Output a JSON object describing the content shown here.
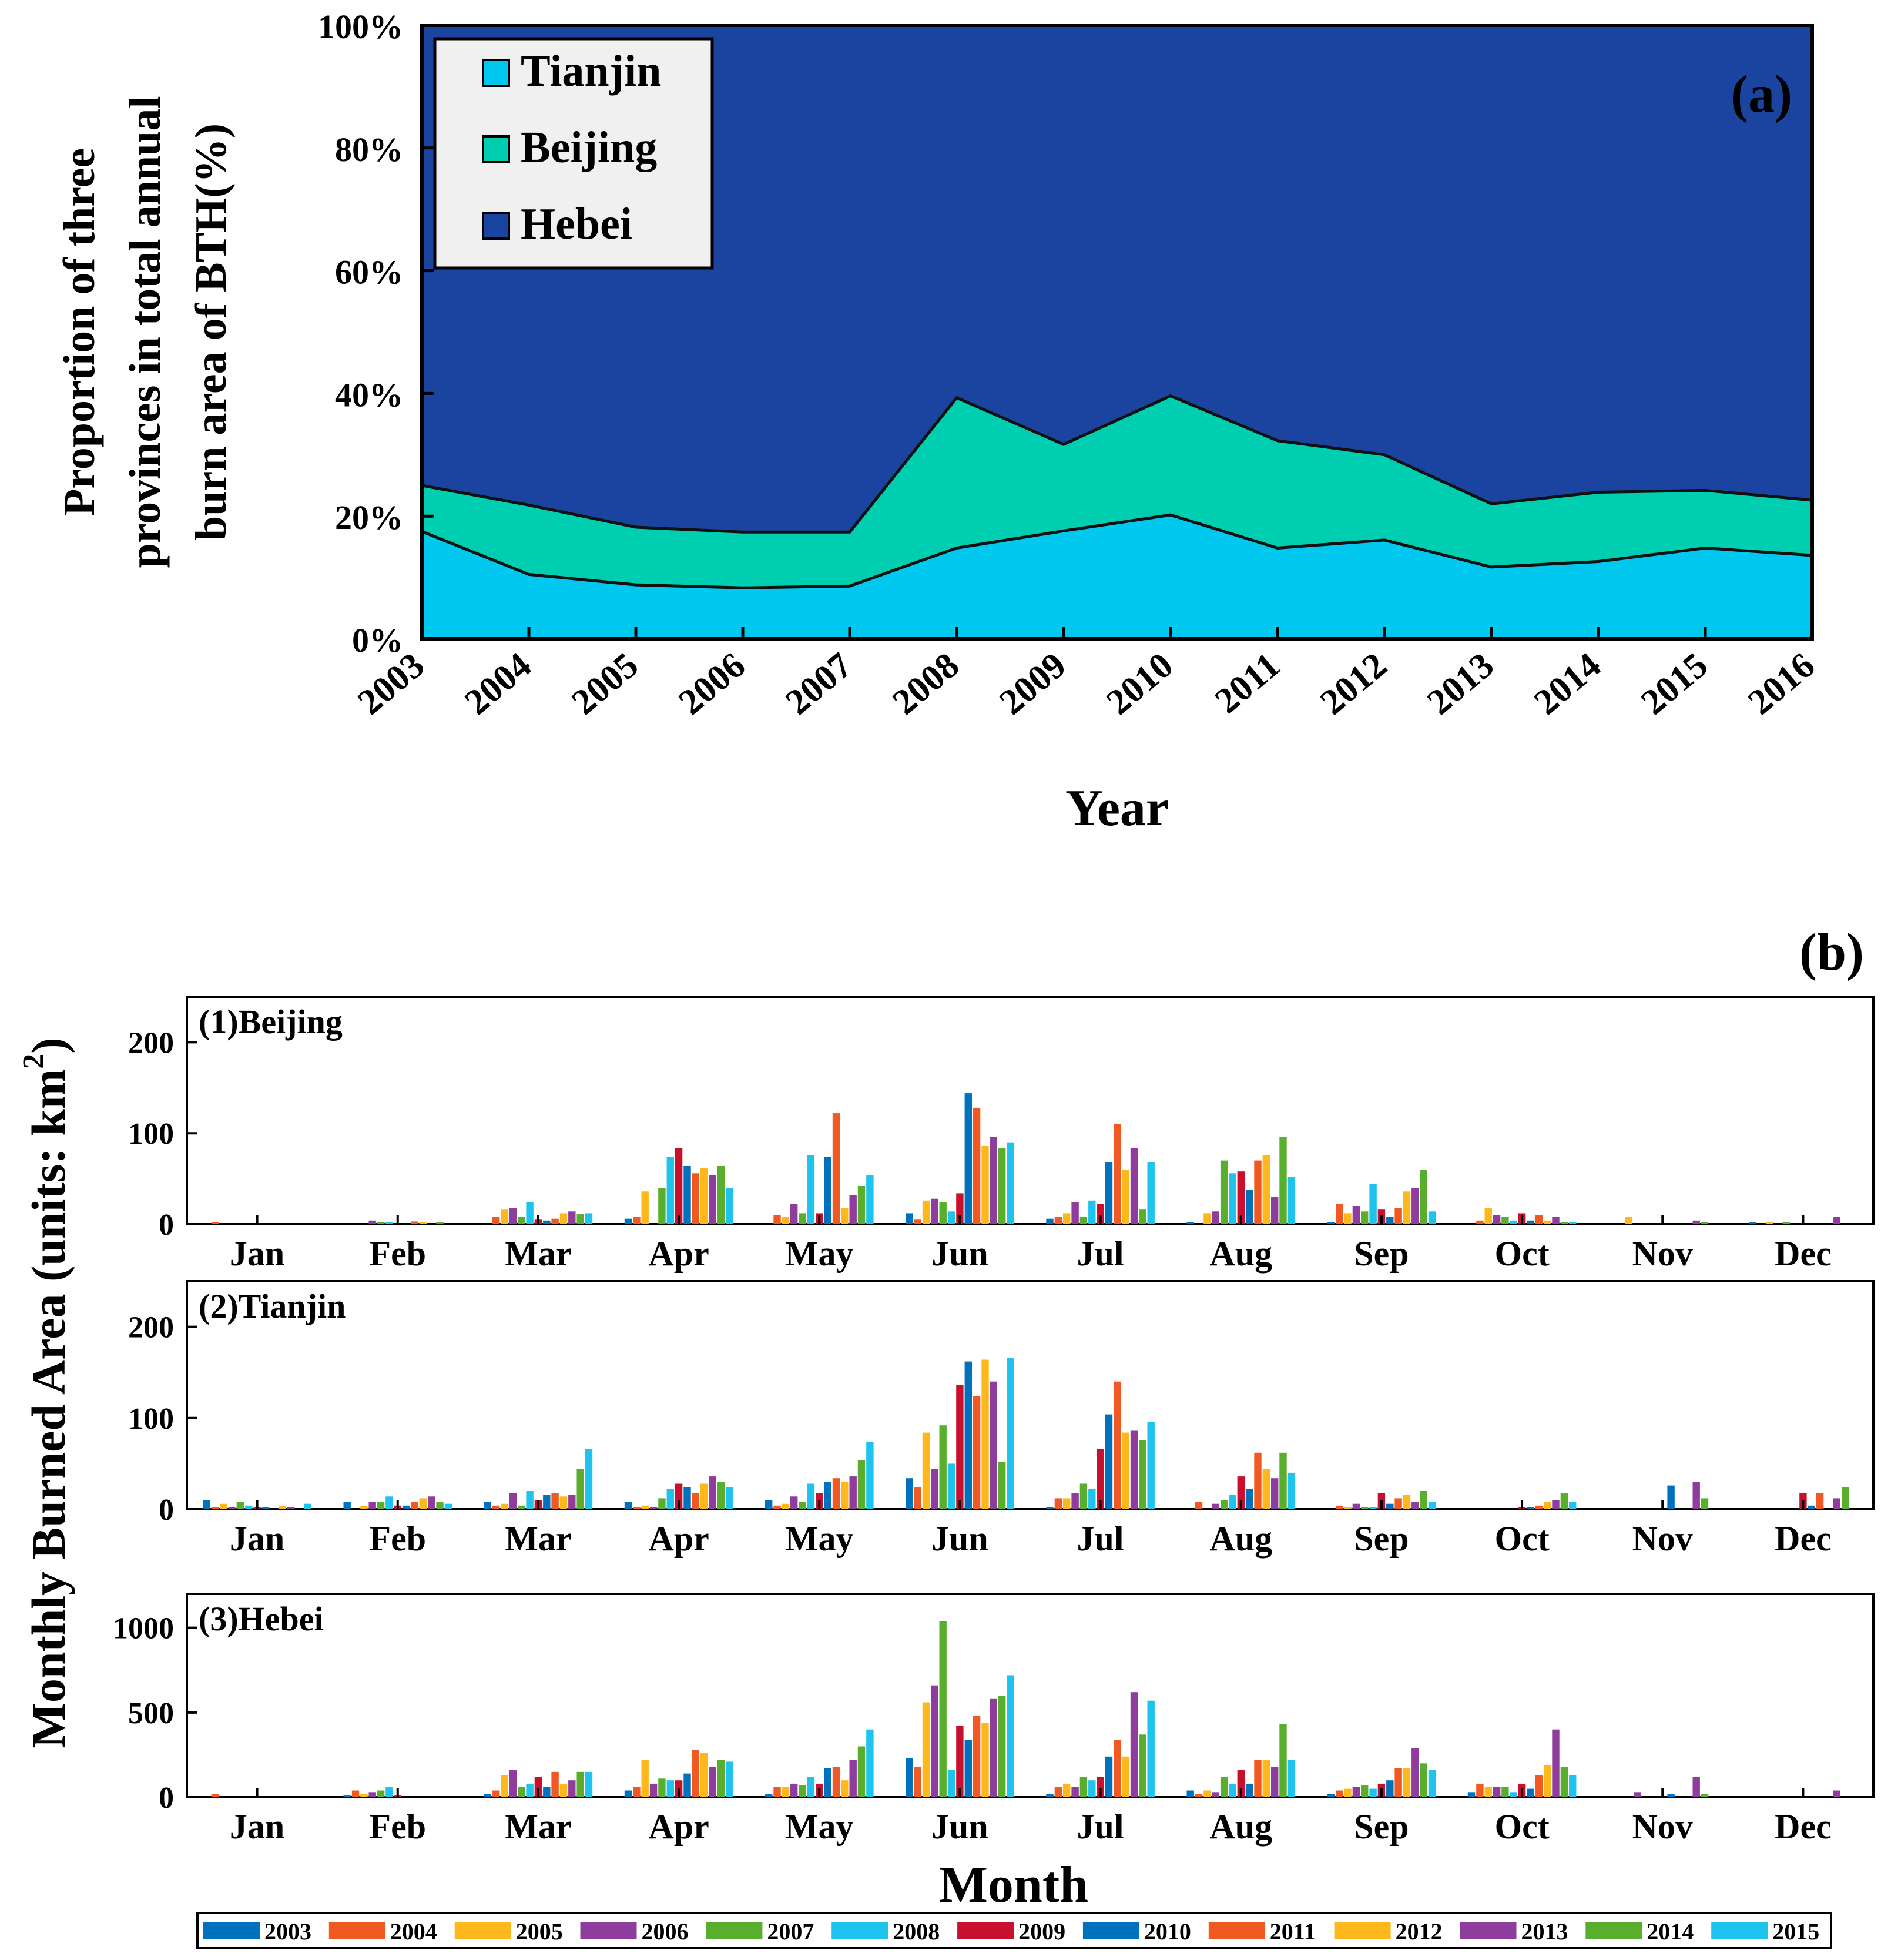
{
  "chart_data": [
    {
      "id": "a",
      "type": "area",
      "stacked": true,
      "panel_label": "(a)",
      "xlabel": "Year",
      "ylabel_lines": [
        "Proportion of three",
        "provinces in total annual",
        "burn area of BTH(%)"
      ],
      "x": [
        "2003",
        "2004",
        "2005",
        "2006",
        "2007",
        "2008",
        "2009",
        "2010",
        "2011",
        "2012",
        "2013",
        "2014",
        "2015",
        "2016"
      ],
      "yticks": [
        "0%",
        "20%",
        "40%",
        "60%",
        "80%",
        "100%"
      ],
      "ylim": [
        0,
        100
      ],
      "legend_position": "top-left",
      "series": [
        {
          "name": "Tianjin",
          "color": "#00c8ef",
          "values": [
            17.5,
            10.5,
            8.8,
            8.3,
            8.6,
            14.8,
            17.6,
            20.2,
            14.8,
            16.1,
            11.7,
            12.6,
            14.8,
            13.6
          ]
        },
        {
          "name": "Beijing",
          "color": "#00ceb0",
          "values": [
            7.5,
            11.3,
            9.4,
            9.1,
            8.8,
            24.5,
            14.1,
            19.4,
            17.5,
            13.9,
            10.3,
            11.3,
            9.4,
            9.0
          ]
        },
        {
          "name": "Hebei",
          "color": "#1b44a0",
          "values": [
            75.0,
            78.2,
            81.8,
            82.6,
            82.6,
            60.7,
            68.3,
            60.4,
            67.7,
            70.0,
            78.0,
            76.1,
            75.8,
            77.4
          ]
        }
      ]
    },
    {
      "id": "b",
      "type": "bar",
      "panel_label": "(b)",
      "ylabel_lines": [
        "Monthly   Burned   Area (units: km",
        "2",
        ")"
      ],
      "xlabel": "Month",
      "months": [
        "Jan",
        "Feb",
        "Mar",
        "Apr",
        "May",
        "Jun",
        "Jul",
        "Aug",
        "Sep",
        "Oct",
        "Nov",
        "Dec"
      ],
      "years": [
        "2003",
        "2004",
        "2005",
        "2006",
        "2007",
        "2008",
        "2009",
        "2010",
        "2011",
        "2012",
        "2013",
        "2014",
        "2015"
      ],
      "year_colors": [
        "#0072bd",
        "#f05a22",
        "#ffb81c",
        "#8e3d9c",
        "#5aae2e",
        "#1ec4ee",
        "#c8102e",
        "#0072bd",
        "#f05a22",
        "#ffb81c",
        "#8e3d9c",
        "#5aae2e",
        "#1ec4ee"
      ],
      "legend_position": "bottom",
      "subplots": [
        {
          "title": "(1)Beijing",
          "ylim": [
            0,
            250
          ],
          "yticks": [
            0,
            100,
            200
          ],
          "values": [
            [
              0,
              2,
              0,
              0,
              0,
              0,
              0,
              0,
              0,
              0,
              0,
              0,
              0
            ],
            [
              0,
              0,
              0,
              4,
              2,
              2,
              0,
              0,
              3,
              2,
              0,
              2,
              0
            ],
            [
              0,
              8,
              16,
              18,
              8,
              24,
              5,
              4,
              6,
              12,
              14,
              11,
              12
            ],
            [
              6,
              8,
              36,
              0,
              40,
              74,
              84,
              64,
              56,
              62,
              54,
              64,
              40
            ],
            [
              0,
              10,
              8,
              22,
              12,
              76,
              12,
              74,
              122,
              18,
              32,
              42,
              54
            ],
            [
              12,
              5,
              26,
              28,
              24,
              14,
              34,
              144,
              128,
              86,
              96,
              84,
              90
            ],
            [
              6,
              8,
              12,
              24,
              8,
              26,
              22,
              68,
              110,
              60,
              84,
              16,
              68
            ],
            [
              2,
              0,
              12,
              14,
              70,
              56,
              58,
              38,
              70,
              76,
              30,
              96,
              52
            ],
            [
              2,
              22,
              12,
              20,
              14,
              44,
              16,
              8,
              18,
              36,
              40,
              60,
              14
            ],
            [
              0,
              4,
              18,
              10,
              8,
              4,
              12,
              4,
              10,
              4,
              8,
              2,
              2
            ],
            [
              0,
              0,
              8,
              0,
              0,
              0,
              0,
              0,
              0,
              0,
              4,
              2,
              0
            ],
            [
              2,
              0,
              2,
              0,
              2,
              0,
              0,
              0,
              0,
              0,
              8,
              0,
              0
            ]
          ]
        },
        {
          "title": "(2)Tianjin",
          "ylim": [
            0,
            250
          ],
          "yticks": [
            0,
            100,
            200
          ],
          "values": [
            [
              10,
              2,
              6,
              2,
              8,
              4,
              2,
              2,
              0,
              4,
              2,
              0,
              6
            ],
            [
              8,
              0,
              4,
              8,
              8,
              14,
              4,
              4,
              8,
              12,
              14,
              8,
              6
            ],
            [
              8,
              4,
              6,
              18,
              4,
              20,
              10,
              16,
              18,
              14,
              16,
              44,
              66
            ],
            [
              8,
              2,
              4,
              2,
              12,
              22,
              28,
              24,
              18,
              28,
              36,
              30,
              24
            ],
            [
              10,
              4,
              6,
              14,
              8,
              28,
              18,
              30,
              34,
              30,
              36,
              54,
              74
            ],
            [
              34,
              24,
              84,
              44,
              92,
              50,
              136,
              162,
              124,
              164,
              140,
              52,
              166
            ],
            [
              2,
              12,
              12,
              18,
              28,
              22,
              66,
              104,
              140,
              84,
              86,
              76,
              96
            ],
            [
              0,
              8,
              0,
              6,
              10,
              16,
              36,
              22,
              62,
              44,
              34,
              62,
              40
            ],
            [
              0,
              4,
              2,
              6,
              2,
              2,
              18,
              6,
              12,
              16,
              8,
              20,
              8
            ],
            [
              0,
              0,
              0,
              0,
              0,
              0,
              2,
              2,
              4,
              8,
              10,
              18,
              8
            ],
            [
              0,
              0,
              0,
              0,
              0,
              0,
              0,
              26,
              0,
              0,
              30,
              12,
              0
            ],
            [
              0,
              0,
              0,
              0,
              0,
              0,
              18,
              4,
              18,
              0,
              12,
              24,
              0
            ]
          ]
        },
        {
          "title": "(3)Hebei",
          "ylim": [
            0,
            1200
          ],
          "yticks": [
            0,
            500,
            1000
          ],
          "values": [
            [
              0,
              20,
              0,
              0,
              0,
              0,
              0,
              0,
              0,
              0,
              0,
              0,
              0
            ],
            [
              10,
              40,
              20,
              30,
              40,
              60,
              10,
              0,
              0,
              0,
              0,
              0,
              0
            ],
            [
              20,
              40,
              130,
              160,
              60,
              80,
              120,
              60,
              150,
              80,
              100,
              150,
              150
            ],
            [
              40,
              60,
              220,
              80,
              110,
              100,
              100,
              140,
              280,
              260,
              180,
              220,
              210
            ],
            [
              20,
              60,
              60,
              80,
              70,
              120,
              80,
              170,
              180,
              100,
              220,
              300,
              400
            ],
            [
              230,
              180,
              560,
              660,
              1040,
              160,
              420,
              340,
              480,
              440,
              580,
              600,
              720
            ],
            [
              20,
              60,
              80,
              60,
              120,
              100,
              120,
              240,
              340,
              240,
              620,
              370,
              570
            ],
            [
              40,
              20,
              40,
              30,
              120,
              80,
              160,
              80,
              220,
              220,
              180,
              430,
              220
            ],
            [
              20,
              40,
              50,
              60,
              70,
              50,
              80,
              100,
              170,
              170,
              290,
              200,
              160
            ],
            [
              30,
              80,
              60,
              60,
              60,
              30,
              80,
              50,
              130,
              190,
              400,
              180,
              130
            ],
            [
              0,
              0,
              0,
              30,
              0,
              0,
              0,
              20,
              0,
              0,
              120,
              20,
              0
            ],
            [
              0,
              0,
              0,
              0,
              0,
              0,
              0,
              0,
              0,
              0,
              40,
              0,
              0
            ]
          ]
        }
      ]
    }
  ]
}
